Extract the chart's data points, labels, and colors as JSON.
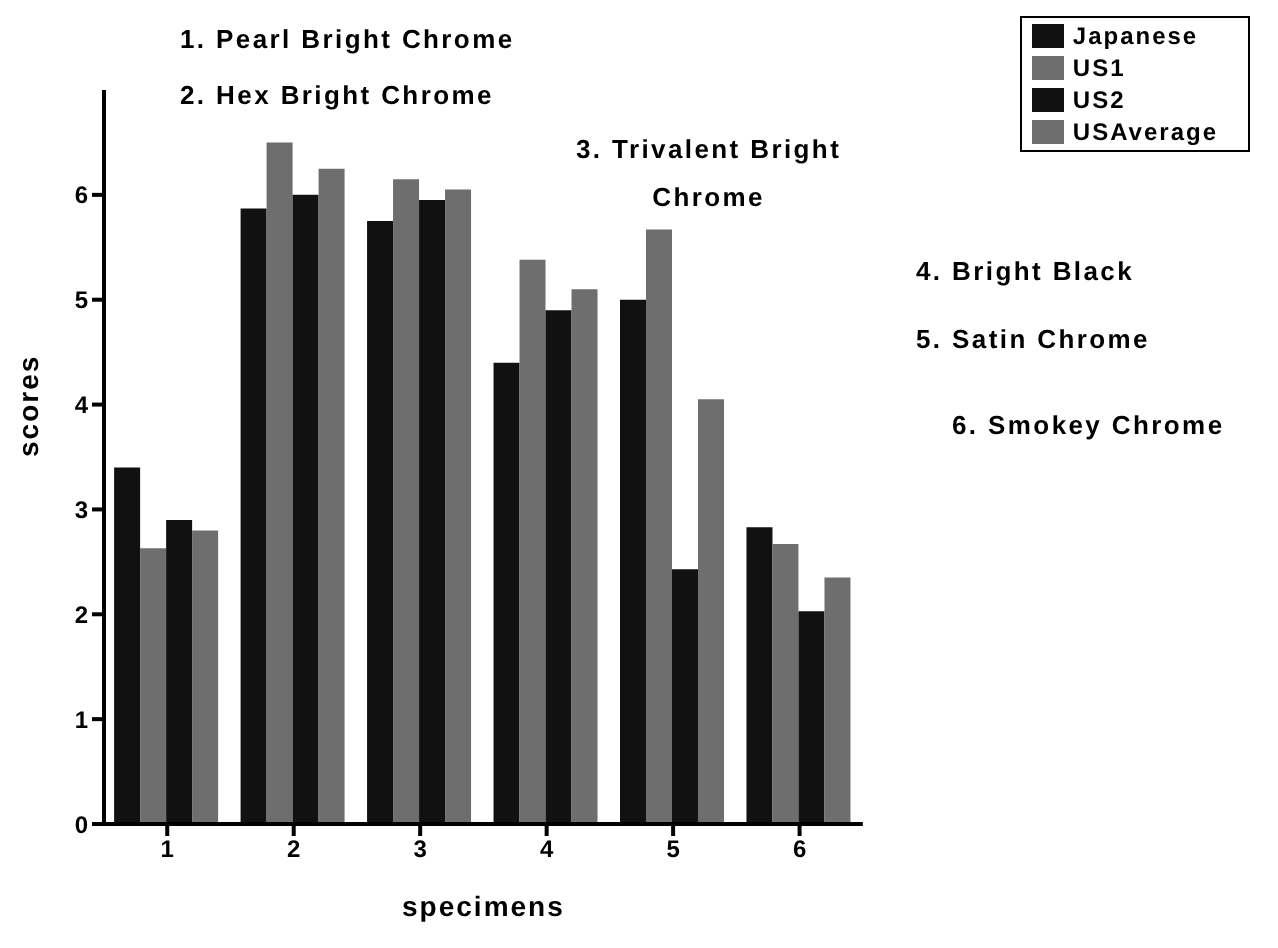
{
  "chart_data": {
    "type": "bar",
    "xlabel": "specimens",
    "ylabel": "scores",
    "categories": [
      "1",
      "2",
      "3",
      "4",
      "5",
      "6"
    ],
    "series": [
      {
        "name": "Japanese",
        "color": "#111111",
        "values": [
          3.4,
          5.87,
          5.75,
          4.4,
          5.0,
          2.83
        ]
      },
      {
        "name": "US1",
        "color": "#6e6e6e",
        "values": [
          2.63,
          6.5,
          6.15,
          5.38,
          5.67,
          2.67
        ]
      },
      {
        "name": "US2",
        "color": "#111111",
        "values": [
          2.9,
          6.0,
          5.95,
          4.9,
          2.43,
          2.03
        ]
      },
      {
        "name": "USAverage",
        "color": "#6e6e6e",
        "values": [
          2.8,
          6.25,
          6.05,
          5.1,
          4.05,
          2.35
        ]
      }
    ],
    "ylim": [
      0,
      7
    ],
    "yticks": [
      0,
      1,
      2,
      3,
      4,
      5,
      6
    ],
    "grid": false,
    "legend": "top right",
    "annotations": [
      "1. Pearl Bright Chrome",
      "2. Hex Bright Chrome",
      "3. Trivalent Bright\nChrome",
      "4. Bright Black",
      "5. Satin Chrome",
      "6. Smokey Chrome"
    ]
  }
}
